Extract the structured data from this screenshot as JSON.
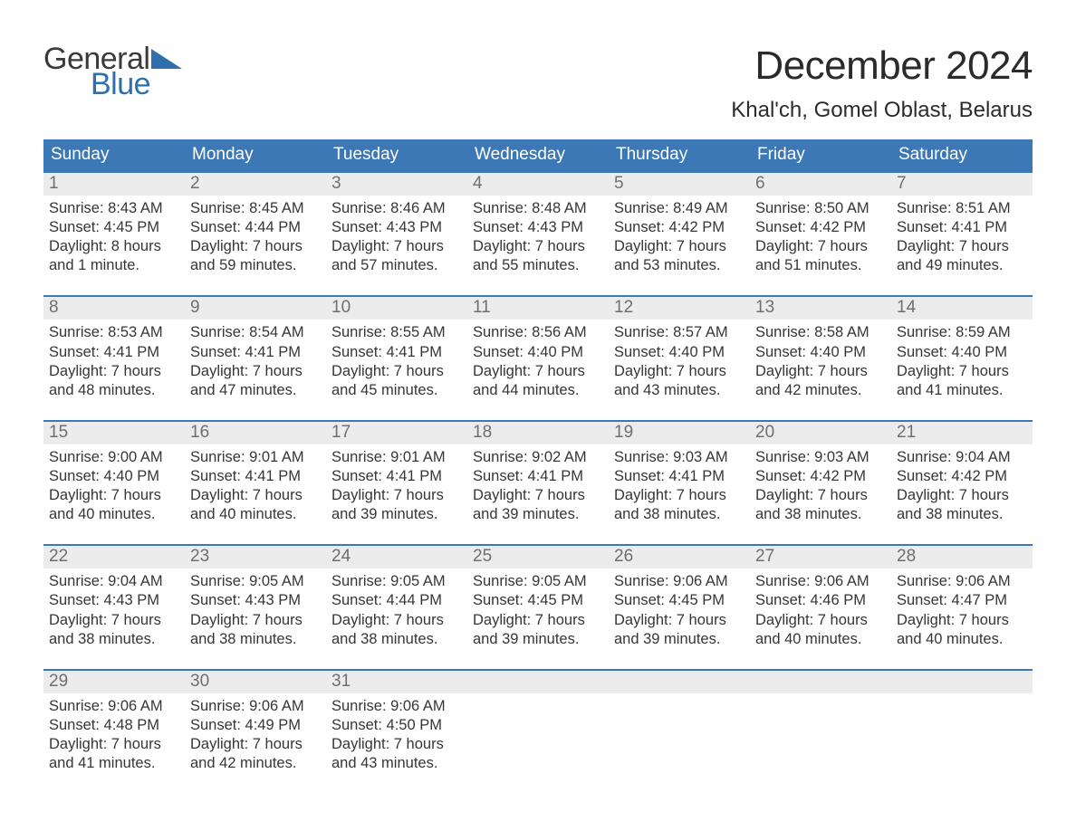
{
  "logo": {
    "text_general": "General",
    "text_blue": "Blue",
    "triangle_color": "#2f6fae"
  },
  "title": "December 2024",
  "location": "Khal'ch, Gomel Oblast, Belarus",
  "colors": {
    "header_bg": "#3b78b5",
    "header_text": "#ffffff",
    "daynum_bg": "#ececec",
    "daynum_text": "#6f6f6f",
    "body_text": "#363636",
    "rule": "#3b78b5",
    "background": "#ffffff"
  },
  "typography": {
    "title_fontsize": 44,
    "location_fontsize": 24,
    "weekday_fontsize": 19,
    "daynum_fontsize": 19,
    "cell_fontsize": 16.5,
    "font_family": "Arial"
  },
  "layout": {
    "columns": 7,
    "rows": 5,
    "cell_line_height": 1.28
  },
  "weekdays": [
    "Sunday",
    "Monday",
    "Tuesday",
    "Wednesday",
    "Thursday",
    "Friday",
    "Saturday"
  ],
  "weeks": [
    [
      {
        "day": "1",
        "sunrise": "Sunrise: 8:43 AM",
        "sunset": "Sunset: 4:45 PM",
        "dl1": "Daylight: 8 hours",
        "dl2": "and 1 minute."
      },
      {
        "day": "2",
        "sunrise": "Sunrise: 8:45 AM",
        "sunset": "Sunset: 4:44 PM",
        "dl1": "Daylight: 7 hours",
        "dl2": "and 59 minutes."
      },
      {
        "day": "3",
        "sunrise": "Sunrise: 8:46 AM",
        "sunset": "Sunset: 4:43 PM",
        "dl1": "Daylight: 7 hours",
        "dl2": "and 57 minutes."
      },
      {
        "day": "4",
        "sunrise": "Sunrise: 8:48 AM",
        "sunset": "Sunset: 4:43 PM",
        "dl1": "Daylight: 7 hours",
        "dl2": "and 55 minutes."
      },
      {
        "day": "5",
        "sunrise": "Sunrise: 8:49 AM",
        "sunset": "Sunset: 4:42 PM",
        "dl1": "Daylight: 7 hours",
        "dl2": "and 53 minutes."
      },
      {
        "day": "6",
        "sunrise": "Sunrise: 8:50 AM",
        "sunset": "Sunset: 4:42 PM",
        "dl1": "Daylight: 7 hours",
        "dl2": "and 51 minutes."
      },
      {
        "day": "7",
        "sunrise": "Sunrise: 8:51 AM",
        "sunset": "Sunset: 4:41 PM",
        "dl1": "Daylight: 7 hours",
        "dl2": "and 49 minutes."
      }
    ],
    [
      {
        "day": "8",
        "sunrise": "Sunrise: 8:53 AM",
        "sunset": "Sunset: 4:41 PM",
        "dl1": "Daylight: 7 hours",
        "dl2": "and 48 minutes."
      },
      {
        "day": "9",
        "sunrise": "Sunrise: 8:54 AM",
        "sunset": "Sunset: 4:41 PM",
        "dl1": "Daylight: 7 hours",
        "dl2": "and 47 minutes."
      },
      {
        "day": "10",
        "sunrise": "Sunrise: 8:55 AM",
        "sunset": "Sunset: 4:41 PM",
        "dl1": "Daylight: 7 hours",
        "dl2": "and 45 minutes."
      },
      {
        "day": "11",
        "sunrise": "Sunrise: 8:56 AM",
        "sunset": "Sunset: 4:40 PM",
        "dl1": "Daylight: 7 hours",
        "dl2": "and 44 minutes."
      },
      {
        "day": "12",
        "sunrise": "Sunrise: 8:57 AM",
        "sunset": "Sunset: 4:40 PM",
        "dl1": "Daylight: 7 hours",
        "dl2": "and 43 minutes."
      },
      {
        "day": "13",
        "sunrise": "Sunrise: 8:58 AM",
        "sunset": "Sunset: 4:40 PM",
        "dl1": "Daylight: 7 hours",
        "dl2": "and 42 minutes."
      },
      {
        "day": "14",
        "sunrise": "Sunrise: 8:59 AM",
        "sunset": "Sunset: 4:40 PM",
        "dl1": "Daylight: 7 hours",
        "dl2": "and 41 minutes."
      }
    ],
    [
      {
        "day": "15",
        "sunrise": "Sunrise: 9:00 AM",
        "sunset": "Sunset: 4:40 PM",
        "dl1": "Daylight: 7 hours",
        "dl2": "and 40 minutes."
      },
      {
        "day": "16",
        "sunrise": "Sunrise: 9:01 AM",
        "sunset": "Sunset: 4:41 PM",
        "dl1": "Daylight: 7 hours",
        "dl2": "and 40 minutes."
      },
      {
        "day": "17",
        "sunrise": "Sunrise: 9:01 AM",
        "sunset": "Sunset: 4:41 PM",
        "dl1": "Daylight: 7 hours",
        "dl2": "and 39 minutes."
      },
      {
        "day": "18",
        "sunrise": "Sunrise: 9:02 AM",
        "sunset": "Sunset: 4:41 PM",
        "dl1": "Daylight: 7 hours",
        "dl2": "and 39 minutes."
      },
      {
        "day": "19",
        "sunrise": "Sunrise: 9:03 AM",
        "sunset": "Sunset: 4:41 PM",
        "dl1": "Daylight: 7 hours",
        "dl2": "and 38 minutes."
      },
      {
        "day": "20",
        "sunrise": "Sunrise: 9:03 AM",
        "sunset": "Sunset: 4:42 PM",
        "dl1": "Daylight: 7 hours",
        "dl2": "and 38 minutes."
      },
      {
        "day": "21",
        "sunrise": "Sunrise: 9:04 AM",
        "sunset": "Sunset: 4:42 PM",
        "dl1": "Daylight: 7 hours",
        "dl2": "and 38 minutes."
      }
    ],
    [
      {
        "day": "22",
        "sunrise": "Sunrise: 9:04 AM",
        "sunset": "Sunset: 4:43 PM",
        "dl1": "Daylight: 7 hours",
        "dl2": "and 38 minutes."
      },
      {
        "day": "23",
        "sunrise": "Sunrise: 9:05 AM",
        "sunset": "Sunset: 4:43 PM",
        "dl1": "Daylight: 7 hours",
        "dl2": "and 38 minutes."
      },
      {
        "day": "24",
        "sunrise": "Sunrise: 9:05 AM",
        "sunset": "Sunset: 4:44 PM",
        "dl1": "Daylight: 7 hours",
        "dl2": "and 38 minutes."
      },
      {
        "day": "25",
        "sunrise": "Sunrise: 9:05 AM",
        "sunset": "Sunset: 4:45 PM",
        "dl1": "Daylight: 7 hours",
        "dl2": "and 39 minutes."
      },
      {
        "day": "26",
        "sunrise": "Sunrise: 9:06 AM",
        "sunset": "Sunset: 4:45 PM",
        "dl1": "Daylight: 7 hours",
        "dl2": "and 39 minutes."
      },
      {
        "day": "27",
        "sunrise": "Sunrise: 9:06 AM",
        "sunset": "Sunset: 4:46 PM",
        "dl1": "Daylight: 7 hours",
        "dl2": "and 40 minutes."
      },
      {
        "day": "28",
        "sunrise": "Sunrise: 9:06 AM",
        "sunset": "Sunset: 4:47 PM",
        "dl1": "Daylight: 7 hours",
        "dl2": "and 40 minutes."
      }
    ],
    [
      {
        "day": "29",
        "sunrise": "Sunrise: 9:06 AM",
        "sunset": "Sunset: 4:48 PM",
        "dl1": "Daylight: 7 hours",
        "dl2": "and 41 minutes."
      },
      {
        "day": "30",
        "sunrise": "Sunrise: 9:06 AM",
        "sunset": "Sunset: 4:49 PM",
        "dl1": "Daylight: 7 hours",
        "dl2": "and 42 minutes."
      },
      {
        "day": "31",
        "sunrise": "Sunrise: 9:06 AM",
        "sunset": "Sunset: 4:50 PM",
        "dl1": "Daylight: 7 hours",
        "dl2": "and 43 minutes."
      },
      null,
      null,
      null,
      null
    ]
  ]
}
